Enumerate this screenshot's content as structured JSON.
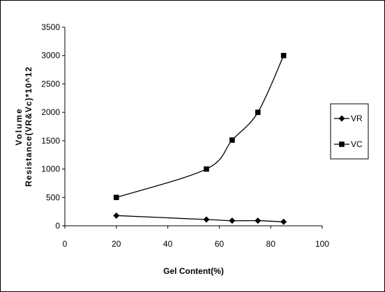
{
  "chart_data": {
    "type": "line",
    "title": "",
    "xlabel": "Gel Content(%)",
    "ylabel_lines": [
      "Volume",
      "Resistance(VR&Vc)*10^12"
    ],
    "xlim": [
      0,
      100
    ],
    "ylim": [
      0,
      3500
    ],
    "xticks": [
      0,
      20,
      40,
      60,
      80,
      100
    ],
    "yticks": [
      0,
      500,
      1000,
      1500,
      2000,
      2500,
      3000,
      3500
    ],
    "grid": false,
    "legend_position": "right",
    "series": [
      {
        "name": "VR",
        "marker": "diamond",
        "color": "#000000",
        "x": [
          20,
          55,
          65,
          75,
          85
        ],
        "y": [
          180,
          110,
          90,
          90,
          70
        ]
      },
      {
        "name": "VC",
        "marker": "square",
        "color": "#000000",
        "x": [
          20,
          55,
          65,
          75,
          85
        ],
        "y": [
          500,
          1000,
          1510,
          2000,
          3000
        ]
      }
    ]
  }
}
